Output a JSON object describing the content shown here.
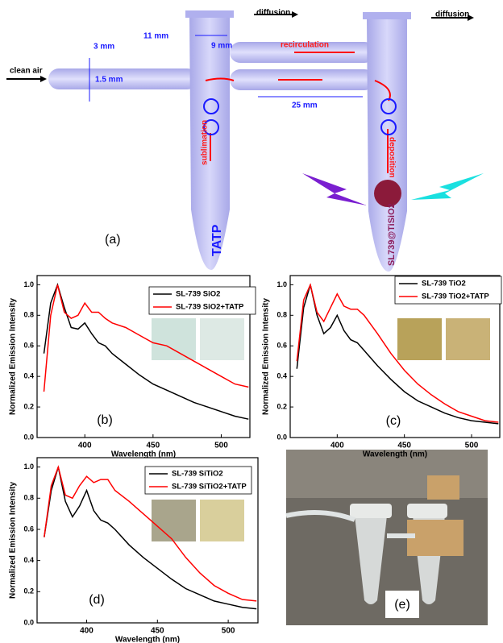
{
  "diagram": {
    "diffusion_left": "diffusion",
    "diffusion_right": "diffusion",
    "outer_diameter": "3 mm",
    "inner_diameter": "1.5 mm",
    "tube_width": "11 mm",
    "gap": "9 mm",
    "recirculation": "recirculation",
    "length": "25 mm",
    "clean_air": "clean air",
    "sublimation": "sublimation",
    "deposition": "deposition",
    "source": "TATP",
    "sensor": "SL739@TiSiO2",
    "label": "(a)"
  },
  "photo": {
    "label": "(e)"
  },
  "chart_data": [
    {
      "type": "line",
      "label": "(b)",
      "xlabel": "Wavelength (nm)",
      "ylabel": "Normalized Emission Intensity",
      "x": [
        370,
        375,
        380,
        385,
        390,
        395,
        400,
        405,
        410,
        415,
        420,
        430,
        440,
        450,
        460,
        470,
        480,
        490,
        500,
        510,
        520
      ],
      "series": [
        {
          "name": "SL-739 SiO2",
          "color": "#000000",
          "values": [
            0.55,
            0.88,
            1.0,
            0.85,
            0.72,
            0.71,
            0.75,
            0.68,
            0.62,
            0.6,
            0.55,
            0.48,
            0.41,
            0.35,
            0.31,
            0.27,
            0.23,
            0.2,
            0.17,
            0.14,
            0.12
          ]
        },
        {
          "name": "SL-739 SiO2+TATP",
          "color": "#ff0000",
          "values": [
            0.3,
            0.8,
            1.0,
            0.82,
            0.78,
            0.8,
            0.88,
            0.82,
            0.82,
            0.78,
            0.75,
            0.72,
            0.67,
            0.62,
            0.6,
            0.55,
            0.5,
            0.45,
            0.4,
            0.35,
            0.33
          ]
        }
      ],
      "xlim": [
        365,
        521
      ],
      "ylim": [
        0,
        1.06
      ],
      "xticks": [
        400,
        450,
        500
      ],
      "yticks": [
        {
          "value": 0,
          "label": "0.0"
        },
        0.2,
        0.4,
        0.6,
        0.8,
        {
          "value": 1,
          "label": "1.0"
        }
      ],
      "inset_colors": [
        "#cfe3dc",
        "#dde9e4"
      ]
    },
    {
      "type": "line",
      "label": "(c)",
      "xlabel": "Wavelength (nm)",
      "ylabel": "Normalized Emission Intensity",
      "x": [
        370,
        375,
        380,
        385,
        390,
        395,
        400,
        405,
        410,
        415,
        420,
        430,
        440,
        450,
        460,
        470,
        480,
        490,
        500,
        510,
        520
      ],
      "series": [
        {
          "name": "SL-739 TiO2",
          "color": "#000000",
          "values": [
            0.45,
            0.85,
            1.0,
            0.8,
            0.68,
            0.72,
            0.8,
            0.7,
            0.64,
            0.62,
            0.57,
            0.47,
            0.38,
            0.3,
            0.24,
            0.2,
            0.16,
            0.13,
            0.11,
            0.1,
            0.09
          ]
        },
        {
          "name": "SL-739 TiO2+TATP",
          "color": "#ff0000",
          "values": [
            0.5,
            0.9,
            1.0,
            0.82,
            0.76,
            0.85,
            0.94,
            0.86,
            0.84,
            0.84,
            0.8,
            0.68,
            0.55,
            0.44,
            0.35,
            0.28,
            0.22,
            0.17,
            0.14,
            0.11,
            0.1
          ]
        }
      ],
      "xlim": [
        365,
        521
      ],
      "ylim": [
        0,
        1.06
      ],
      "xticks": [
        400,
        450,
        500
      ],
      "yticks": [
        {
          "value": 0,
          "label": "0.0"
        },
        0.2,
        0.4,
        0.6,
        0.8,
        {
          "value": 1,
          "label": "1.0"
        }
      ],
      "inset_colors": [
        "#b8a25a",
        "#c9b277"
      ]
    },
    {
      "type": "line",
      "label": "(d)",
      "xlabel": "Wavelength (nm)",
      "ylabel": "Normalized Emission Intensity",
      "x": [
        370,
        375,
        380,
        385,
        390,
        395,
        400,
        405,
        410,
        415,
        420,
        430,
        440,
        450,
        460,
        470,
        480,
        490,
        500,
        510,
        520
      ],
      "series": [
        {
          "name": "SL-739 SiTiO2",
          "color": "#000000",
          "values": [
            0.55,
            0.85,
            1.0,
            0.78,
            0.68,
            0.75,
            0.85,
            0.72,
            0.66,
            0.64,
            0.6,
            0.5,
            0.42,
            0.35,
            0.28,
            0.22,
            0.18,
            0.14,
            0.12,
            0.1,
            0.09
          ]
        },
        {
          "name": "SL-739 SiTiO2+TATP",
          "color": "#ff0000",
          "values": [
            0.55,
            0.88,
            1.0,
            0.82,
            0.8,
            0.88,
            0.94,
            0.9,
            0.92,
            0.92,
            0.85,
            0.78,
            0.7,
            0.62,
            0.54,
            0.42,
            0.32,
            0.24,
            0.19,
            0.15,
            0.14
          ]
        }
      ],
      "xlim": [
        365,
        521
      ],
      "ylim": [
        0,
        1.06
      ],
      "xticks": [
        400,
        450,
        500
      ],
      "yticks": [
        {
          "value": 0,
          "label": "0.0"
        },
        0.2,
        0.4,
        0.6,
        0.8,
        {
          "value": 1,
          "label": "1.0"
        }
      ],
      "inset_colors": [
        "#a9a58c",
        "#d9cf9c"
      ]
    }
  ]
}
